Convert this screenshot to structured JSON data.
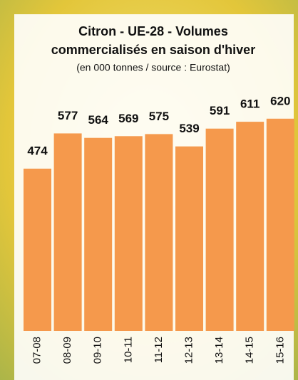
{
  "chart_data": {
    "type": "bar",
    "title": "Citron - UE-28 - Volumes",
    "title_line2": "commercialisés en saison d'hiver",
    "subtitle": "(en 000 tonnes / source : Eurostat)",
    "categories": [
      "07-08",
      "08-09",
      "09-10",
      "10-11",
      "11-12",
      "12-13",
      "13-14",
      "14-15",
      "15-16"
    ],
    "values": [
      474,
      577,
      564,
      569,
      575,
      539,
      591,
      611,
      620
    ],
    "color": "#f5994c"
  }
}
